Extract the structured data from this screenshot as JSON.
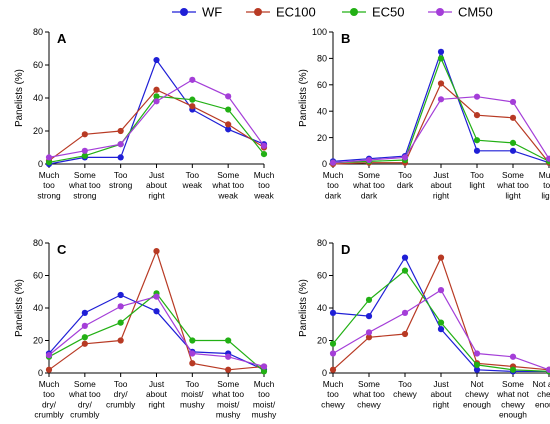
{
  "legend": [
    {
      "name": "WF",
      "color": "#1f1fd6"
    },
    {
      "name": "EC100",
      "color": "#b83a24"
    },
    {
      "name": "EC50",
      "color": "#22b014"
    },
    {
      "name": "CM50",
      "color": "#a43ed8"
    }
  ],
  "chart_data": [
    {
      "type": "line",
      "panel_label": "A",
      "ylabel": "Panelists (%)",
      "ylim": [
        0,
        80
      ],
      "yticks": [
        0,
        20,
        40,
        60,
        80
      ],
      "categories": [
        "Much too strong",
        "Some what too strong",
        "Too strong",
        "Just about right",
        "Too weak",
        "Some what too weak",
        "Much too weak"
      ],
      "category_lines": [
        [
          "Much",
          "too",
          "strong"
        ],
        [
          "Some",
          "what too",
          "strong"
        ],
        [
          "Too",
          "strong"
        ],
        [
          "Just",
          "about",
          "right"
        ],
        [
          "Too",
          "weak"
        ],
        [
          "Some",
          "what too",
          "weak"
        ],
        [
          "Much",
          "too",
          "weak"
        ]
      ],
      "series": [
        {
          "name": "WF",
          "values": [
            0,
            4,
            4,
            63,
            33,
            21,
            12
          ]
        },
        {
          "name": "EC100",
          "values": [
            2,
            18,
            20,
            45,
            35,
            24,
            10
          ]
        },
        {
          "name": "EC50",
          "values": [
            1,
            5,
            12,
            41,
            39,
            33,
            6
          ]
        },
        {
          "name": "CM50",
          "values": [
            4,
            8,
            12,
            38,
            51,
            41,
            11
          ]
        }
      ]
    },
    {
      "type": "line",
      "panel_label": "B",
      "ylabel": "Panelists (%)",
      "ylim": [
        0,
        100
      ],
      "yticks": [
        0,
        20,
        40,
        60,
        80,
        100
      ],
      "categories": [
        "Much too dark",
        "Some what too dark",
        "Too dark",
        "Just about right",
        "Too light",
        "Some what too light",
        "Much too light"
      ],
      "category_lines": [
        [
          "Much",
          "too",
          "dark"
        ],
        [
          "Some",
          "what too",
          "dark"
        ],
        [
          "Too",
          "dark"
        ],
        [
          "Just",
          "about",
          "right"
        ],
        [
          "Too",
          "light"
        ],
        [
          "Some",
          "what too",
          "light"
        ],
        [
          "Much",
          "too",
          "light"
        ]
      ],
      "series": [
        {
          "name": "WF",
          "values": [
            2,
            4,
            6,
            85,
            10,
            10,
            1
          ]
        },
        {
          "name": "EC100",
          "values": [
            0,
            1,
            1,
            61,
            37,
            35,
            1
          ]
        },
        {
          "name": "EC50",
          "values": [
            1,
            2,
            3,
            80,
            18,
            16,
            2
          ]
        },
        {
          "name": "CM50",
          "values": [
            1,
            3,
            5,
            49,
            51,
            47,
            4
          ]
        }
      ]
    },
    {
      "type": "line",
      "panel_label": "C",
      "ylabel": "Panelists (%)",
      "ylim": [
        0,
        80
      ],
      "yticks": [
        0,
        20,
        40,
        60,
        80
      ],
      "categories": [
        "Much too dry/ crumbly",
        "Some what too dry/ crumbly",
        "Too dry/ crumbly",
        "Just about right",
        "Too moist/ mushy",
        "Some what too moist/ mushy",
        "Much too moist/ mushy"
      ],
      "category_lines": [
        [
          "Much",
          "too",
          "dry/",
          "crumbly"
        ],
        [
          "Some",
          "what too",
          "dry/",
          "crumbly"
        ],
        [
          "Too",
          "dry/",
          "crumbly"
        ],
        [
          "Just",
          "about",
          "right"
        ],
        [
          "Too",
          "moist/",
          "mushy"
        ],
        [
          "Some",
          "what too",
          "moist/",
          "mushy"
        ],
        [
          "Much",
          "too",
          "moist/",
          "mushy"
        ]
      ],
      "series": [
        {
          "name": "WF",
          "values": [
            12,
            37,
            48,
            38,
            13,
            12,
            2
          ]
        },
        {
          "name": "EC100",
          "values": [
            2,
            18,
            20,
            75,
            6,
            2,
            4
          ]
        },
        {
          "name": "EC50",
          "values": [
            10,
            22,
            31,
            49,
            20,
            20,
            1
          ]
        },
        {
          "name": "CM50",
          "values": [
            11,
            29,
            41,
            47,
            12,
            10,
            4
          ]
        }
      ]
    },
    {
      "type": "line",
      "panel_label": "D",
      "ylabel": "Panelists (%)",
      "ylim": [
        0,
        80
      ],
      "yticks": [
        0,
        20,
        40,
        60,
        80
      ],
      "categories": [
        "Much too chewy",
        "Some what too chewy",
        "Too chewy",
        "Just about right",
        "Not chewy enough",
        "Some what not chewy enough",
        "Not at all chewy enough"
      ],
      "category_lines": [
        [
          "Much",
          "too",
          "chewy"
        ],
        [
          "Some",
          "what too",
          "chewy"
        ],
        [
          "Too",
          "chewy"
        ],
        [
          "Just",
          "about",
          "right"
        ],
        [
          "Not",
          "chewy",
          "enough"
        ],
        [
          "Some",
          "what not",
          "chewy",
          "enough"
        ],
        [
          "Not at all",
          "chewy",
          "enough"
        ]
      ],
      "series": [
        {
          "name": "WF",
          "values": [
            37,
            35,
            71,
            27,
            2,
            1,
            1
          ]
        },
        {
          "name": "EC100",
          "values": [
            2,
            22,
            24,
            71,
            6,
            4,
            2
          ]
        },
        {
          "name": "EC50",
          "values": [
            18,
            45,
            63,
            31,
            5,
            2,
            1
          ]
        },
        {
          "name": "CM50",
          "values": [
            12,
            25,
            37,
            51,
            12,
            10,
            2
          ]
        }
      ]
    }
  ]
}
